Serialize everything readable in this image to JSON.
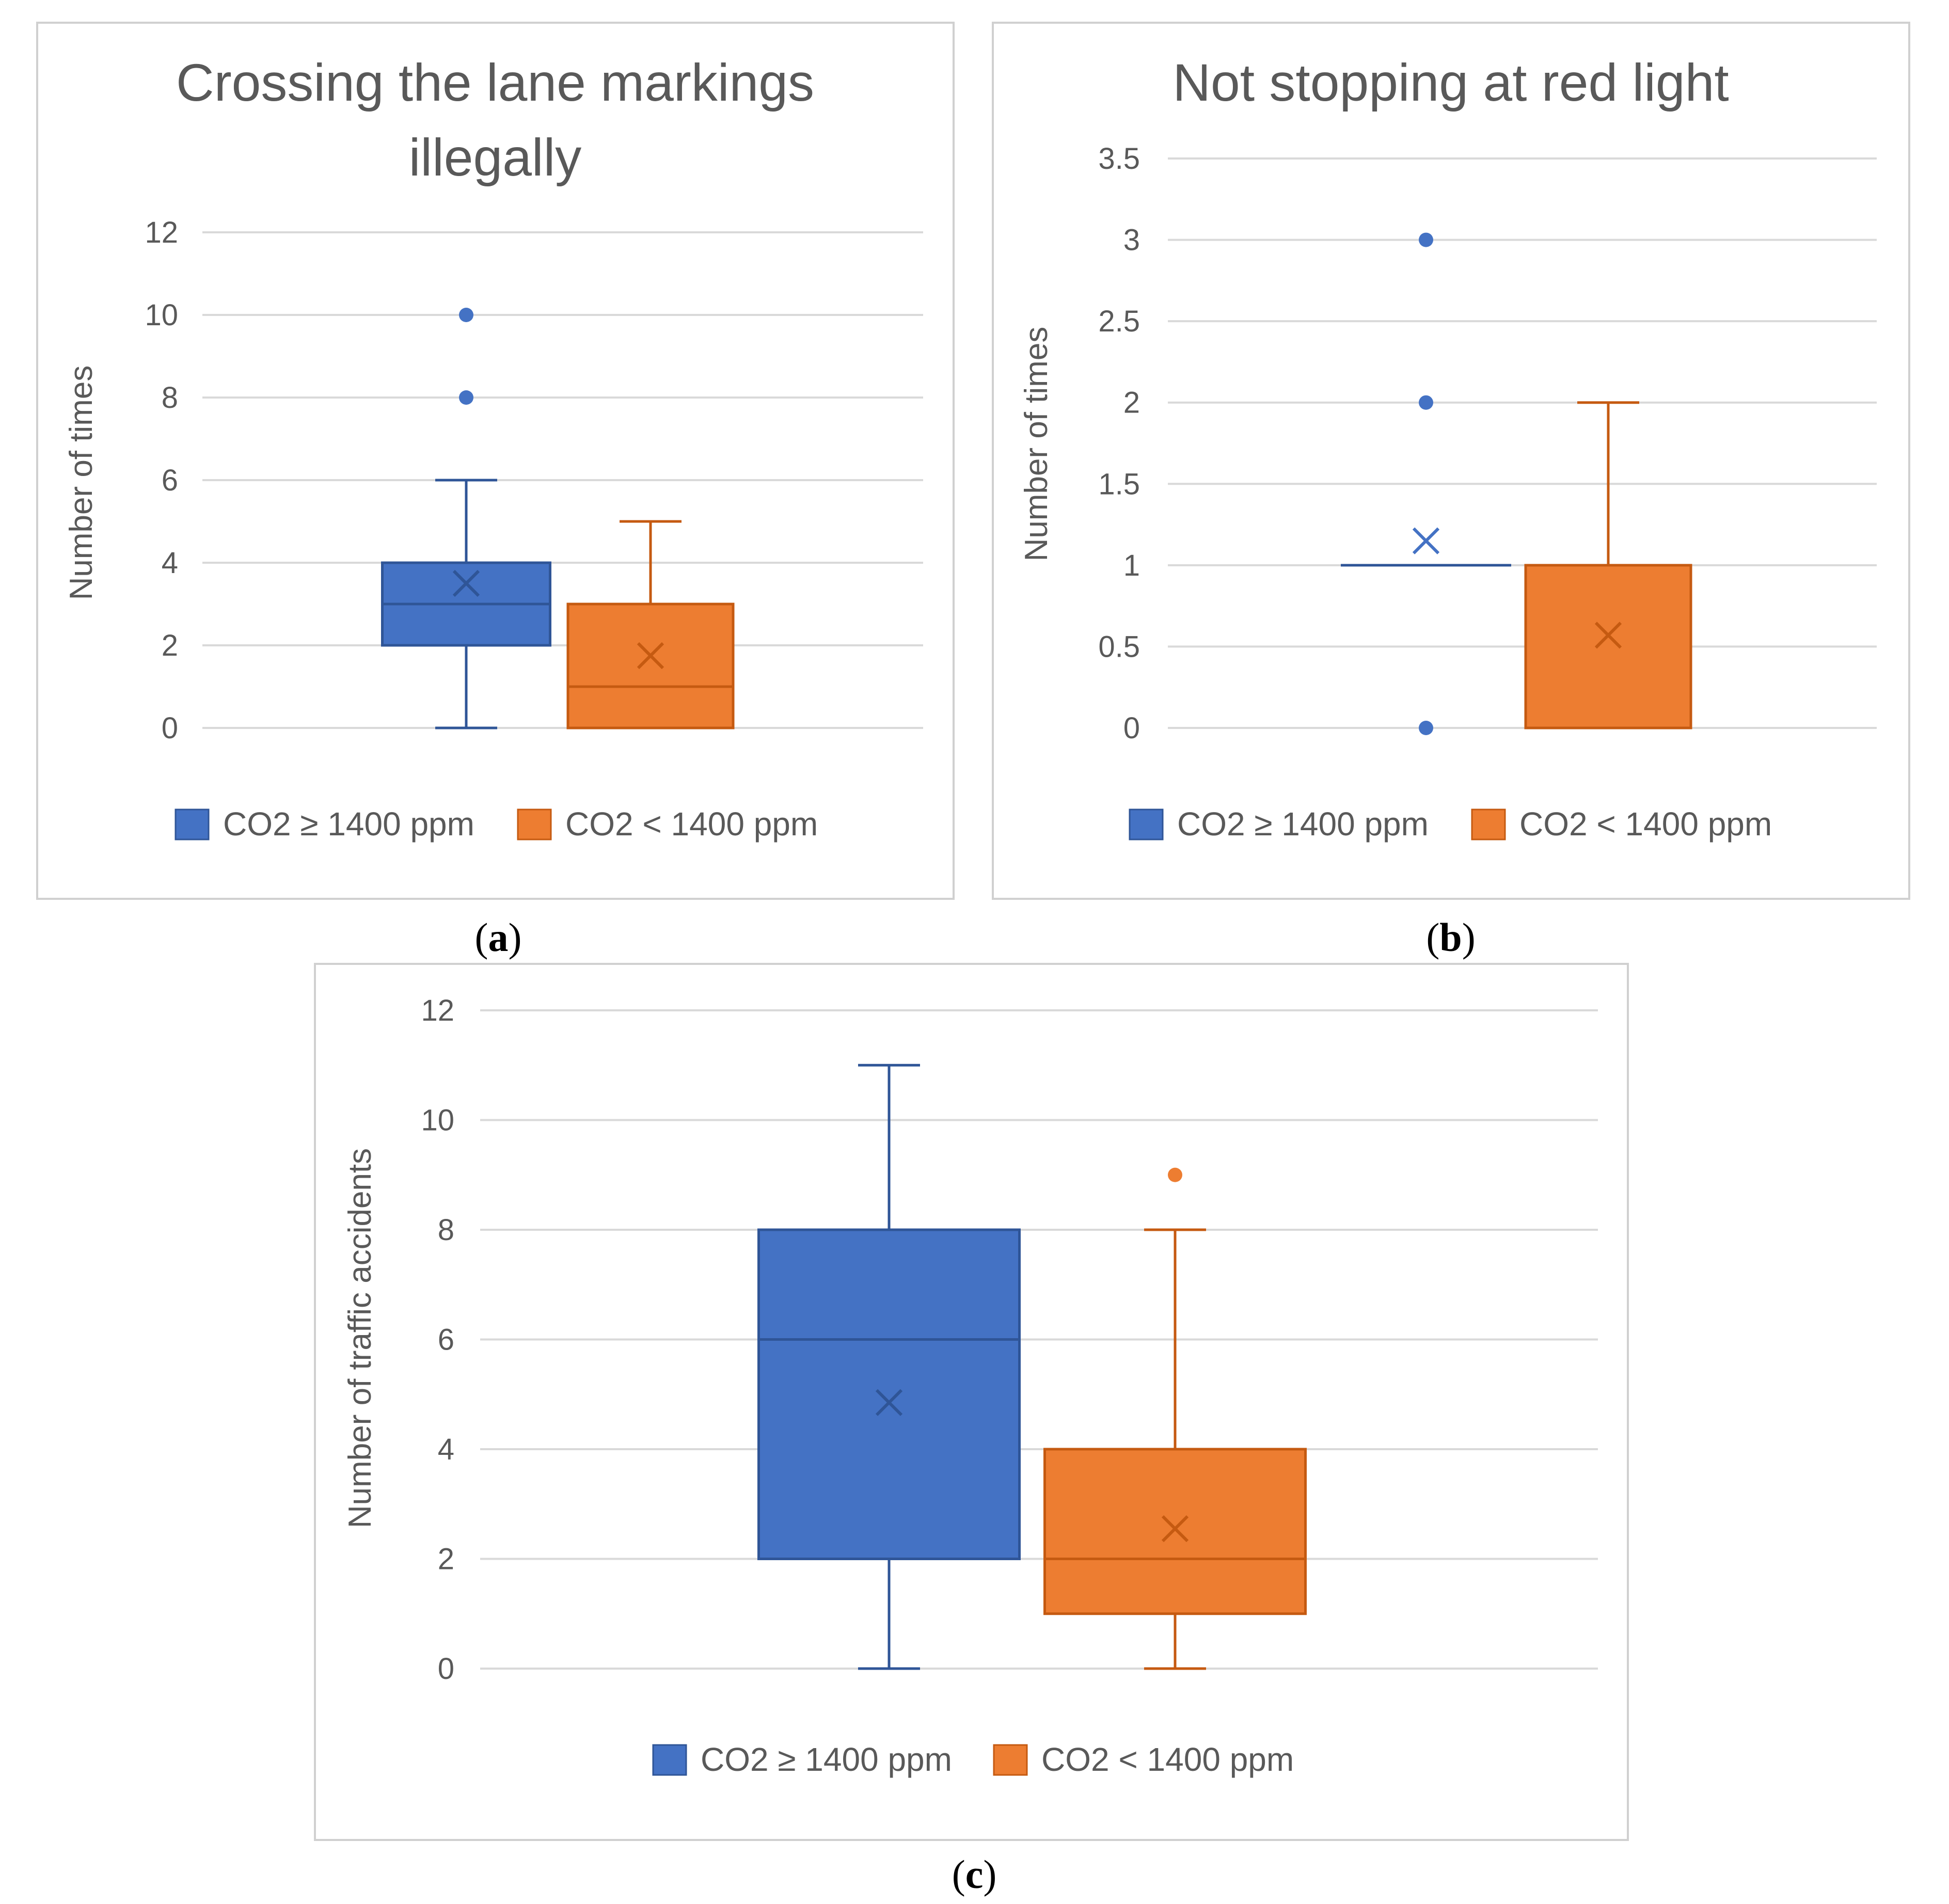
{
  "chart_data": [
    {
      "type": "boxplot",
      "panel": "a",
      "caption": {
        "open": "(",
        "letter": "a",
        "close": ")"
      },
      "title_lines": [
        "Crossing the lane markings",
        "illegally"
      ],
      "ylabel": "Number of times",
      "ylim": [
        0,
        12
      ],
      "yticks": [
        0,
        2,
        4,
        6,
        8,
        10,
        12
      ],
      "series": [
        {
          "name": "CO2 ≥ 1400 ppm",
          "color": "#4472C4",
          "min": 0,
          "q1": 2,
          "median": 3,
          "q3": 4,
          "max": 6,
          "mean": 3.5,
          "outliers": [
            8,
            10
          ]
        },
        {
          "name": "CO2 < 1400 ppm",
          "color": "#ED7D31",
          "min": 0,
          "q1": 0,
          "median": 1,
          "q3": 3,
          "max": 5,
          "mean": 1.75,
          "outliers": []
        }
      ]
    },
    {
      "type": "boxplot",
      "panel": "b",
      "caption": {
        "open": "(",
        "letter": "b",
        "close": ")"
      },
      "title_lines": [
        "Not stopping at red light"
      ],
      "ylabel": "Number of times",
      "ylim": [
        0,
        3.5
      ],
      "yticks": [
        0,
        0.5,
        1,
        1.5,
        2,
        2.5,
        3,
        3.5
      ],
      "series": [
        {
          "name": "CO2 ≥ 1400 ppm",
          "color": "#4472C4",
          "min": 1,
          "q1": 1,
          "median": 1,
          "q3": 1,
          "max": 1,
          "mean": 1.15,
          "outliers": [
            0,
            2,
            3
          ]
        },
        {
          "name": "CO2 < 1400 ppm",
          "color": "#ED7D31",
          "min": 0,
          "q1": 0,
          "median": 0,
          "q3": 1,
          "max": 2,
          "mean": 0.57,
          "outliers": []
        }
      ]
    },
    {
      "type": "boxplot",
      "panel": "c",
      "caption": {
        "open": "(",
        "letter": "c",
        "close": ")"
      },
      "title_lines": [],
      "ylabel": "Number of traffic accidents",
      "ylim": [
        0,
        12
      ],
      "yticks": [
        0,
        2,
        4,
        6,
        8,
        10,
        12
      ],
      "series": [
        {
          "name": "CO2 ≥ 1400 ppm",
          "color": "#4472C4",
          "min": 0,
          "q1": 2,
          "median": 6,
          "q3": 8,
          "max": 11,
          "mean": 4.85,
          "outliers": []
        },
        {
          "name": "CO2 < 1400 ppm",
          "color": "#ED7D31",
          "min": 0,
          "q1": 1,
          "median": 2,
          "q3": 4,
          "max": 8,
          "mean": 2.55,
          "outliers": [
            9
          ]
        }
      ]
    }
  ]
}
